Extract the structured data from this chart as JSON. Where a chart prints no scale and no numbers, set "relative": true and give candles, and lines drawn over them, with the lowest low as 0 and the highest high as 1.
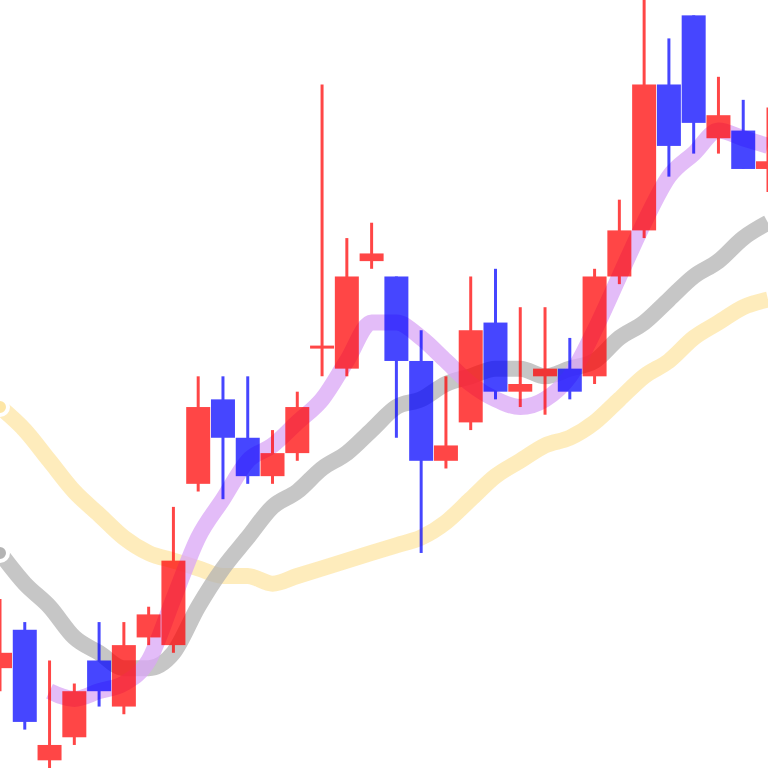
{
  "chart_data": {
    "type": "candlestick",
    "relative": true,
    "categories": [
      null,
      null,
      null,
      null,
      null,
      null,
      null,
      null,
      null,
      null,
      null,
      null,
      null,
      null,
      null,
      null,
      null,
      null,
      null,
      null,
      null,
      null,
      null,
      null,
      null,
      null,
      null,
      null,
      null,
      null,
      null,
      null
    ],
    "ohlc": [
      [
        0.13,
        0.22,
        0.1,
        0.15
      ],
      [
        0.18,
        0.19,
        0.05,
        0.06
      ],
      [
        0.01,
        0.14,
        0,
        0.03
      ],
      [
        0.04,
        0.11,
        0.03,
        0.1
      ],
      [
        0.14,
        0.19,
        0.08,
        0.1
      ],
      [
        0.08,
        0.19,
        0.07,
        0.16
      ],
      [
        0.17,
        0.21,
        0.16,
        0.2
      ],
      [
        0.16,
        0.34,
        0.15,
        0.27
      ],
      [
        0.37,
        0.51,
        0.36,
        0.47
      ],
      [
        0.48,
        0.51,
        0.35,
        0.43
      ],
      [
        0.43,
        0.51,
        0.37,
        0.38
      ],
      [
        0.38,
        0.44,
        0.37,
        0.41
      ],
      [
        0.41,
        0.49,
        0.4,
        0.47
      ],
      [
        0.55,
        0.89,
        0.51,
        0.55
      ],
      [
        0.52,
        0.69,
        0.51,
        0.64
      ],
      [
        0.66,
        0.71,
        0.65,
        0.67
      ],
      [
        0.64,
        0.64,
        0.43,
        0.53
      ],
      [
        0.53,
        0.57,
        0.28,
        0.4
      ],
      [
        0.4,
        0.51,
        0.39,
        0.42
      ],
      [
        0.45,
        0.64,
        0.44,
        0.57
      ],
      [
        0.58,
        0.65,
        0.48,
        0.49
      ],
      [
        0.49,
        0.6,
        0.47,
        0.5
      ],
      [
        0.51,
        0.6,
        0.46,
        0.52
      ],
      [
        0.52,
        0.56,
        0.48,
        0.49
      ],
      [
        0.51,
        0.65,
        0.5,
        0.64
      ],
      [
        0.64,
        0.74,
        0.63,
        0.7
      ],
      [
        0.7,
        1,
        0.69,
        0.89
      ],
      [
        0.89,
        0.95,
        0.77,
        0.81
      ],
      [
        0.98,
        0.98,
        0.8,
        0.84
      ],
      [
        0.82,
        0.9,
        0.8,
        0.85
      ],
      [
        0.83,
        0.87,
        0.78,
        0.78
      ],
      [
        0.78,
        0.86,
        0.75,
        0.79
      ]
    ],
    "colors": [
      "#ff0000",
      "#0000ff",
      "#ff0000",
      "#ff0000",
      "#0000ff",
      "#ff0000",
      "#ff0000",
      "#ff0000",
      "#ff0000",
      "#0000ff",
      "#0000ff",
      "#ff0000",
      "#ff0000",
      "#ff0000",
      "#ff0000",
      "#ff0000",
      "#0000ff",
      "#0000ff",
      "#ff0000",
      "#ff0000",
      "#0000ff",
      "#ff0000",
      "#ff0000",
      "#0000ff",
      "#ff0000",
      "#ff0000",
      "#ff0000",
      "#0000ff",
      "#0000ff",
      "#ff0000",
      "#0000ff",
      "#ff0000"
    ],
    "series": [
      {
        "type": "line",
        "color": "#fde6a6",
        "values": [
          0.47,
          0.44,
          0.4,
          0.36,
          0.33,
          0.3,
          0.28,
          0.27,
          0.26,
          0.25,
          0.25,
          0.24,
          0.25,
          0.26,
          0.27,
          0.28,
          0.29,
          0.3,
          0.32,
          0.35,
          0.38,
          0.4,
          0.42,
          0.43,
          0.45,
          0.48,
          0.51,
          0.53,
          0.56,
          0.58,
          0.6,
          0.61
        ]
      },
      {
        "type": "line",
        "color": "#b3b3b3",
        "values": [
          0.28,
          0.24,
          0.21,
          0.17,
          0.15,
          0.13,
          0.13,
          0.15,
          0.21,
          0.26,
          0.3,
          0.34,
          0.36,
          0.39,
          0.41,
          0.44,
          0.47,
          0.48,
          0.5,
          0.51,
          0.52,
          0.52,
          0.51,
          0.52,
          0.53,
          0.56,
          0.58,
          0.61,
          0.64,
          0.66,
          0.69,
          0.71
        ]
      },
      {
        "type": "line",
        "color": "#d9a6f5",
        "values": [
          null,
          null,
          0.1,
          0.09,
          0.1,
          0.11,
          0.14,
          0.22,
          0.3,
          0.35,
          0.4,
          0.42,
          0.45,
          0.48,
          0.53,
          0.58,
          0.58,
          0.56,
          0.53,
          0.5,
          0.48,
          0.47,
          0.48,
          0.51,
          0.57,
          0.64,
          0.71,
          0.77,
          0.8,
          0.83,
          0.82,
          0.81
        ]
      }
    ],
    "grid": false
  }
}
